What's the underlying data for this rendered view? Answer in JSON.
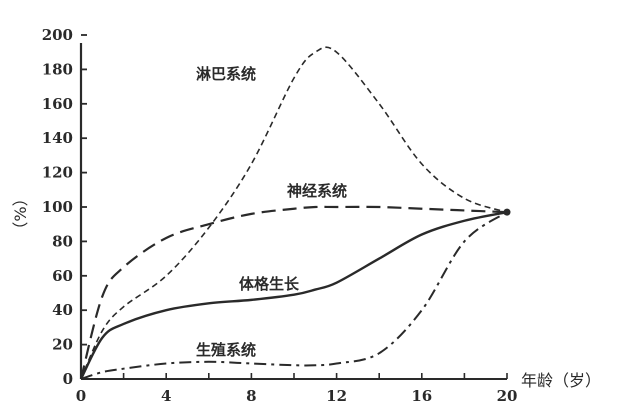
{
  "chart_data": {
    "type": "line",
    "title": "",
    "xlabel": "年龄（岁）",
    "ylabel": "（%）",
    "xlim": [
      0,
      20
    ],
    "ylim": [
      0,
      200
    ],
    "x_ticks": [
      0,
      4,
      8,
      12,
      16,
      20
    ],
    "x_minor_ticks": [
      2,
      6,
      10,
      14,
      18
    ],
    "y_ticks": [
      0,
      20,
      40,
      60,
      80,
      100,
      120,
      140,
      160,
      180,
      200
    ],
    "grid": false,
    "legend": "inline labels",
    "x": [
      0,
      1,
      2,
      4,
      6,
      8,
      10,
      11,
      12,
      14,
      16,
      18,
      20
    ],
    "series": [
      {
        "name": "淋巴系统",
        "style": "short-dash",
        "values": [
          0,
          28,
          42,
          60,
          88,
          125,
          175,
          190,
          190,
          160,
          125,
          105,
          97
        ]
      },
      {
        "name": "神经系统",
        "style": "long-dash",
        "values": [
          0,
          48,
          65,
          82,
          90,
          96,
          99,
          100,
          100,
          100,
          99,
          98,
          97
        ]
      },
      {
        "name": "体格生长",
        "style": "solid",
        "values": [
          0,
          24,
          32,
          40,
          44,
          46,
          49,
          52,
          56,
          70,
          84,
          92,
          97
        ]
      },
      {
        "name": "生殖系统",
        "style": "dash-dot",
        "values": [
          0,
          4,
          6,
          9,
          10,
          9,
          8,
          8,
          9,
          15,
          40,
          80,
          97
        ]
      }
    ]
  },
  "labels": {
    "lymph": "淋巴系统",
    "neural": "神经系统",
    "body": "体格生长",
    "repro": "生殖系统",
    "x_axis_title": "年龄（岁）",
    "y_axis_title": "（%）"
  },
  "colors": {
    "line": "#2a2a2a",
    "background": "#ffffff"
  }
}
